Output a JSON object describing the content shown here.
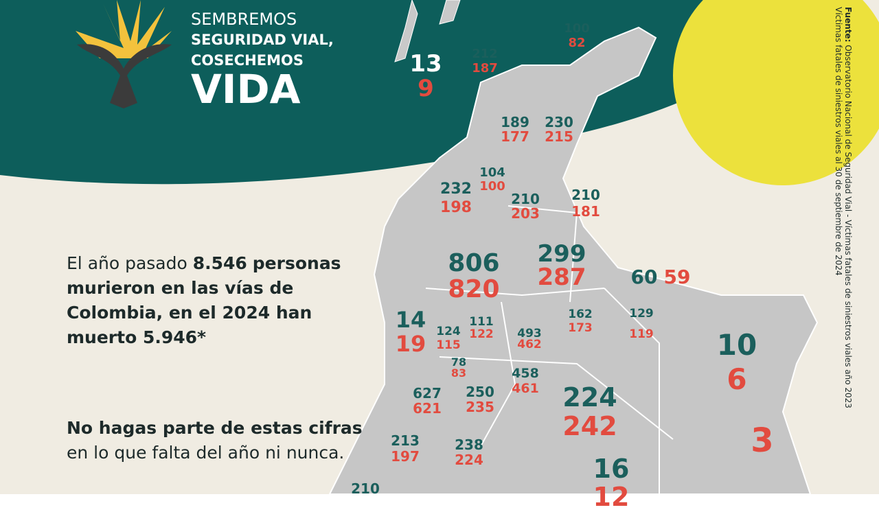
{
  "header": {
    "line1": "SEMBREMOS",
    "line2": "SEGURIDAD VIAL,",
    "line3": "COSECHEMOS",
    "line4": "VIDA"
  },
  "message": {
    "p1_regular": "El año pasado",
    "p1_number": "8.546",
    "p1_bold": "personas murieron en las vías de Colombia, en el 2024 han muerto 5.946*",
    "p2_bold": "No hagas parte de estas cifras",
    "p2_regular": "en lo que falta del año ni nunca."
  },
  "source": {
    "label": "Fuente:",
    "line1": "Observatorio Nacional de Seguridad Vial - Víctimas fatales de siniestros viales año 2023",
    "line2": "Víctimas fatales de siniestros viales al 30 de septiembre de 2024"
  },
  "regions": [
    {
      "v2023": "13",
      "v2024": "9"
    },
    {
      "v2023": "212",
      "v2024": "187"
    },
    {
      "v2023": "100",
      "v2024": "82"
    },
    {
      "v2023": "189",
      "v2024": "177"
    },
    {
      "v2023": "230",
      "v2024": "215"
    },
    {
      "v2023": "104",
      "v2024": "100"
    },
    {
      "v2023": "232",
      "v2024": "198"
    },
    {
      "v2023": "210",
      "v2024": "203"
    },
    {
      "v2023": "210",
      "v2024": "181"
    },
    {
      "v2023": "806",
      "v2024": "820"
    },
    {
      "v2023": "299",
      "v2024": "287"
    },
    {
      "v2023": "60",
      "v2024": "59"
    },
    {
      "v2023": "14",
      "v2024": "19"
    },
    {
      "v2023": "124",
      "v2024": "115"
    },
    {
      "v2023": "111",
      "v2024": "122"
    },
    {
      "v2023": "493",
      "v2024": "462"
    },
    {
      "v2023": "162",
      "v2024": "173"
    },
    {
      "v2023": "129",
      "v2024": "119"
    },
    {
      "v2023": "78",
      "v2024": "83"
    },
    {
      "v2023": "10",
      "v2024": "6"
    },
    {
      "v2023": "458",
      "v2024": "461"
    },
    {
      "v2023": "627",
      "v2024": "621"
    },
    {
      "v2023": "250",
      "v2024": "235"
    },
    {
      "v2023": "224",
      "v2024": "242"
    },
    {
      "v2024": "3"
    },
    {
      "v2023": "213",
      "v2024": "197"
    },
    {
      "v2023": "238",
      "v2024": "224"
    },
    {
      "v2023": "16",
      "v2024": "12"
    },
    {
      "v2023": "210"
    }
  ]
}
